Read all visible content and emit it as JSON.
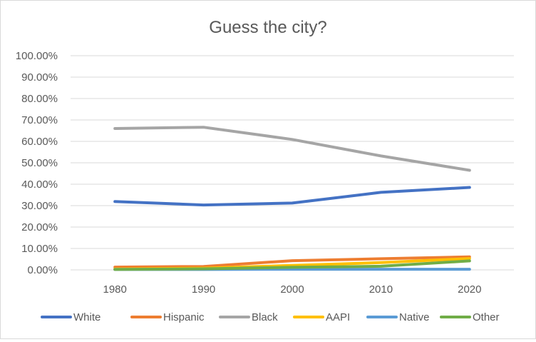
{
  "chart_data": {
    "type": "line",
    "title": "Guess the city?",
    "xlabel": "",
    "ylabel": "",
    "categories": [
      "1980",
      "1990",
      "2000",
      "2010",
      "2020"
    ],
    "y_ticks": [
      "0.00%",
      "10.00%",
      "20.00%",
      "30.00%",
      "40.00%",
      "50.00%",
      "60.00%",
      "70.00%",
      "80.00%",
      "90.00%",
      "100.00%"
    ],
    "ylim": [
      0,
      100
    ],
    "grid": true,
    "legend_position": "bottom",
    "series": [
      {
        "name": "White",
        "color": "#4472c4",
        "values": [
          31.9,
          30.3,
          31.2,
          36.2,
          38.5
        ]
      },
      {
        "name": "Hispanic",
        "color": "#ed7d31",
        "values": [
          1.3,
          1.6,
          4.3,
          5.2,
          6.1
        ]
      },
      {
        "name": "Black",
        "color": "#a5a5a5",
        "values": [
          66.0,
          66.6,
          60.9,
          53.2,
          46.5
        ]
      },
      {
        "name": "AAPI",
        "color": "#ffc000",
        "values": [
          0.4,
          0.8,
          2.1,
          3.4,
          5.3
        ]
      },
      {
        "name": "Native",
        "color": "#5b9bd5",
        "values": [
          0.2,
          0.2,
          0.3,
          0.3,
          0.3
        ]
      },
      {
        "name": "Other",
        "color": "#70ad47",
        "values": [
          0.2,
          0.5,
          1.2,
          1.7,
          4.2
        ]
      }
    ]
  }
}
